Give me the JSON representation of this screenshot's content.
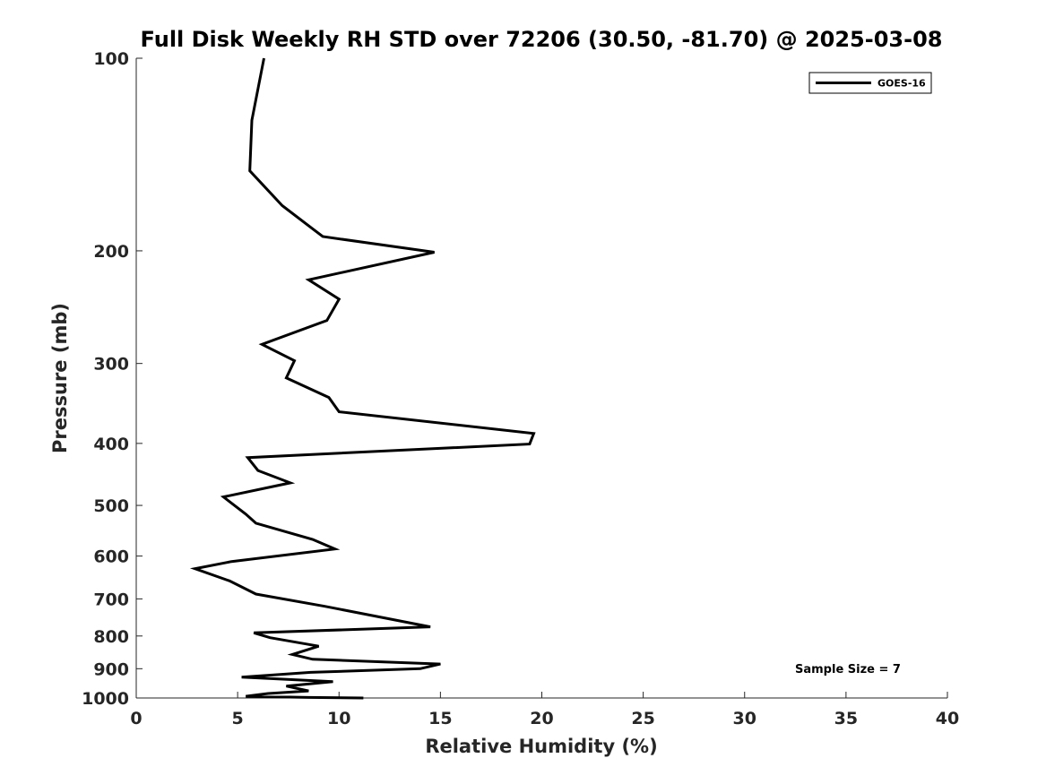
{
  "chart_data": {
    "type": "line",
    "title": "Full Disk Weekly RH STD over 72206 (30.50, -81.70) @ 2025-03-08",
    "xlabel": "Relative Humidity (%)",
    "ylabel": "Pressure (mb)",
    "xlim": [
      0,
      40
    ],
    "ylim": [
      100,
      1000
    ],
    "y_scale": "log",
    "y_reversed": true,
    "x_ticks": [
      "0",
      "5",
      "10",
      "15",
      "20",
      "25",
      "30",
      "35",
      "40"
    ],
    "y_ticks": [
      "100",
      "200",
      "300",
      "400",
      "500",
      "600",
      "700",
      "800",
      "900",
      "1000"
    ],
    "grid": false,
    "legend_position": "top-right",
    "annotation": "Sample Size = 7",
    "series": [
      {
        "name": "GOES-16",
        "color": "#000000",
        "points": [
          [
            6.3,
            100
          ],
          [
            5.7,
            125
          ],
          [
            5.6,
            150
          ],
          [
            7.2,
            170
          ],
          [
            9.2,
            190
          ],
          [
            14.7,
            201
          ],
          [
            8.5,
            222
          ],
          [
            10.0,
            238
          ],
          [
            9.4,
            257
          ],
          [
            6.2,
            280
          ],
          [
            7.8,
            297
          ],
          [
            7.4,
            316
          ],
          [
            9.5,
            339
          ],
          [
            10.0,
            357
          ],
          [
            19.6,
            386
          ],
          [
            19.4,
            401
          ],
          [
            5.5,
            421
          ],
          [
            6.0,
            441
          ],
          [
            7.6,
            461
          ],
          [
            4.3,
            485
          ],
          [
            5.4,
            516
          ],
          [
            5.9,
            533
          ],
          [
            8.7,
            565
          ],
          [
            9.8,
            585
          ],
          [
            4.7,
            612
          ],
          [
            2.9,
            628
          ],
          [
            4.6,
            656
          ],
          [
            5.9,
            688
          ],
          [
            9.3,
            719
          ],
          [
            14.5,
            774
          ],
          [
            5.8,
            791
          ],
          [
            6.6,
            805
          ],
          [
            9.0,
            830
          ],
          [
            7.7,
            855
          ],
          [
            8.7,
            870
          ],
          [
            15.0,
            885
          ],
          [
            14.0,
            900
          ],
          [
            8.6,
            912
          ],
          [
            5.2,
            928
          ],
          [
            9.7,
            943
          ],
          [
            7.4,
            958
          ],
          [
            8.5,
            975
          ],
          [
            6.5,
            984
          ],
          [
            5.4,
            994
          ],
          [
            8.5,
            998
          ],
          [
            11.2,
            1000
          ]
        ]
      }
    ]
  }
}
